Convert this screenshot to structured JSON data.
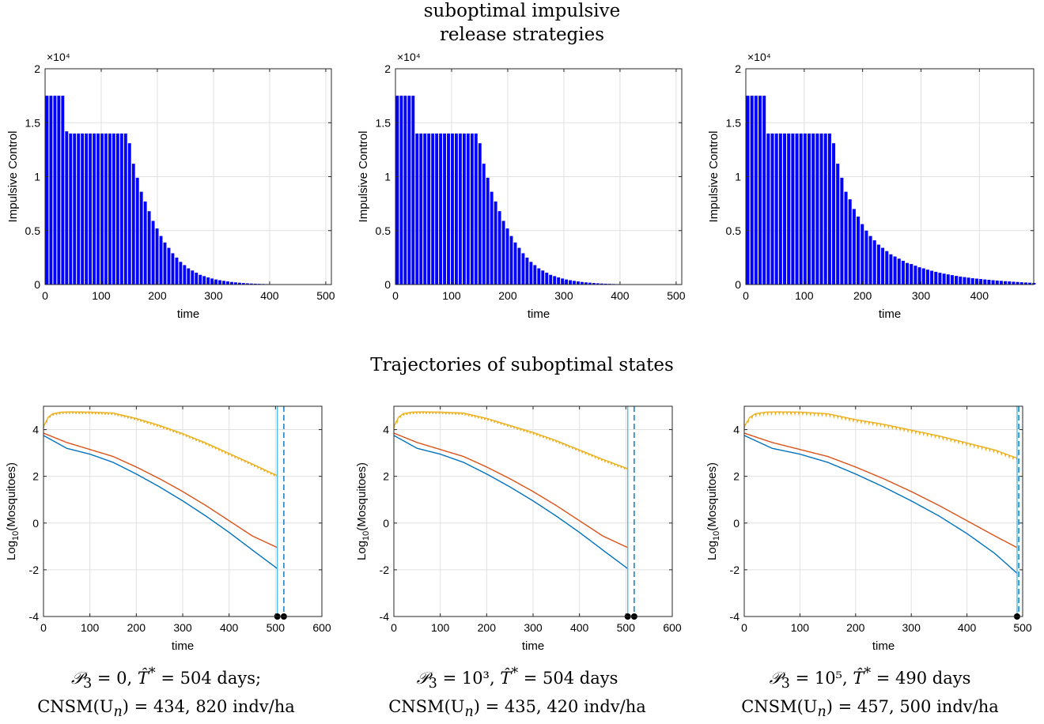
{
  "headers": {
    "top_line1": "suboptimal impulsive",
    "top_line2": "release strategies",
    "bottom": "Trajectories of suboptimal states"
  },
  "captions": [
    {
      "line1_prefix": "𝒫",
      "line1_sub": "3",
      "line1_mid": " = 0,  ",
      "line1_T": "T̂",
      "line1_Tsup": "*",
      "line1_rest": " = 504 days;",
      "line2": "CNSM(U",
      "line2_sub": "n",
      "line2_rest": ") = 434, 820 indv/ha"
    },
    {
      "line1_prefix": "𝒫",
      "line1_sub": "3",
      "line1_mid": " = 10³,  ",
      "line1_T": "T̂",
      "line1_Tsup": "*",
      "line1_rest": " = 504 days",
      "line2": "CNSM(U",
      "line2_sub": "n",
      "line2_rest": ") = 435, 420 indv/ha"
    },
    {
      "line1_prefix": "𝒫",
      "line1_sub": "3",
      "line1_mid": " = 10⁵,  ",
      "line1_T": "T̂",
      "line1_Tsup": "*",
      "line1_rest": " = 490 days",
      "line2": "CNSM(U",
      "line2_sub": "n",
      "line2_rest": ") = 457, 500 indv/ha"
    }
  ],
  "colors": {
    "bars": "#0000ff",
    "blue": "#0072bd",
    "red": "#d95319",
    "yellow": "#edb120",
    "vline": "#4dbeee",
    "grid": "#e0e0e0",
    "axis": "#262626"
  },
  "chart_data": [
    {
      "type": "bar",
      "panel": "top-left",
      "xlabel": "time",
      "ylabel": "Impulsive Control",
      "exponent_label": "×10⁴",
      "xlim": [
        0,
        510
      ],
      "ylim": [
        0,
        20000
      ],
      "xticks": [
        0,
        100,
        200,
        300,
        400,
        500
      ],
      "yticks": [
        0,
        5000,
        10000,
        15000,
        20000
      ],
      "yticklabels": [
        "0",
        "0.5",
        "1",
        "1.5",
        "2"
      ],
      "x": [
        0,
        7,
        14,
        21,
        28,
        35,
        42,
        49,
        56,
        63,
        70,
        77,
        84,
        91,
        98,
        105,
        112,
        119,
        126,
        133,
        140,
        147,
        154,
        161,
        168,
        175,
        182,
        189,
        196,
        203,
        210,
        217,
        224,
        231,
        238,
        245,
        252,
        259,
        266,
        273,
        280,
        287,
        294,
        301,
        308,
        315,
        322,
        329,
        336,
        343,
        350,
        357,
        364,
        371,
        378,
        385,
        392,
        399,
        406,
        413,
        420,
        427,
        434,
        441,
        448,
        455,
        462,
        469,
        476,
        483,
        490,
        497,
        504
      ],
      "values": [
        17500,
        17500,
        17500,
        17500,
        17500,
        14200,
        14000,
        14000,
        14000,
        14000,
        14000,
        14000,
        14000,
        14000,
        14000,
        14000,
        14000,
        14000,
        14000,
        14000,
        14000,
        13100,
        11200,
        9900,
        8600,
        7700,
        6800,
        5900,
        5200,
        4500,
        3900,
        3400,
        2900,
        2500,
        2100,
        1800,
        1500,
        1300,
        1100,
        900,
        780,
        660,
        560,
        470,
        400,
        340,
        290,
        240,
        200,
        170,
        140,
        115,
        95,
        78,
        64,
        52,
        42,
        34,
        27,
        22,
        17,
        13,
        10,
        8,
        6,
        5,
        4,
        3,
        2,
        2,
        1,
        1,
        1
      ],
      "grid": true
    },
    {
      "type": "bar",
      "panel": "top-middle",
      "xlabel": "time",
      "ylabel": "Impulsive Control",
      "exponent_label": "×10⁴",
      "xlim": [
        0,
        510
      ],
      "ylim": [
        0,
        20000
      ],
      "xticks": [
        0,
        100,
        200,
        300,
        400,
        500
      ],
      "yticks": [
        0,
        5000,
        10000,
        15000,
        20000
      ],
      "yticklabels": [
        "0",
        "0.5",
        "1",
        "1.5",
        "2"
      ],
      "x": [
        0,
        7,
        14,
        21,
        28,
        35,
        42,
        49,
        56,
        63,
        70,
        77,
        84,
        91,
        98,
        105,
        112,
        119,
        126,
        133,
        140,
        147,
        154,
        161,
        168,
        175,
        182,
        189,
        196,
        203,
        210,
        217,
        224,
        231,
        238,
        245,
        252,
        259,
        266,
        273,
        280,
        287,
        294,
        301,
        308,
        315,
        322,
        329,
        336,
        343,
        350,
        357,
        364,
        371,
        378,
        385,
        392,
        399,
        406,
        413,
        420,
        427,
        434,
        441,
        448,
        455,
        462,
        469,
        476,
        483,
        490,
        497,
        504
      ],
      "values": [
        17500,
        17500,
        17500,
        17500,
        17500,
        14000,
        14000,
        14000,
        14000,
        14000,
        14000,
        14000,
        14000,
        14000,
        14000,
        14000,
        14000,
        14000,
        14000,
        14000,
        14000,
        13100,
        11200,
        9900,
        8600,
        7700,
        6800,
        5900,
        5200,
        4500,
        3900,
        3400,
        2900,
        2500,
        2100,
        1800,
        1500,
        1300,
        1100,
        900,
        780,
        660,
        560,
        470,
        400,
        340,
        290,
        240,
        200,
        170,
        140,
        115,
        95,
        78,
        64,
        52,
        42,
        34,
        27,
        22,
        17,
        13,
        10,
        8,
        6,
        5,
        4,
        3,
        2,
        2,
        1,
        1,
        1
      ],
      "grid": true
    },
    {
      "type": "bar",
      "panel": "top-right",
      "xlabel": "time",
      "ylabel": "Impulsive Control",
      "exponent_label": "×10⁴",
      "xlim": [
        0,
        493
      ],
      "ylim": [
        0,
        20000
      ],
      "xticks": [
        0,
        100,
        200,
        300,
        400
      ],
      "yticks": [
        0,
        5000,
        10000,
        15000,
        20000
      ],
      "yticklabels": [
        "0",
        "0.5",
        "1",
        "1.5",
        "2"
      ],
      "x": [
        0,
        7,
        14,
        21,
        28,
        35,
        42,
        49,
        56,
        63,
        70,
        77,
        84,
        91,
        98,
        105,
        112,
        119,
        126,
        133,
        140,
        147,
        154,
        161,
        168,
        175,
        182,
        189,
        196,
        203,
        210,
        217,
        224,
        231,
        238,
        245,
        252,
        259,
        266,
        273,
        280,
        287,
        294,
        301,
        308,
        315,
        322,
        329,
        336,
        343,
        350,
        357,
        364,
        371,
        378,
        385,
        392,
        399,
        406,
        413,
        420,
        427,
        434,
        441,
        448,
        455,
        462,
        469,
        476,
        483,
        490
      ],
      "values": [
        17500,
        17500,
        17500,
        17500,
        17500,
        14000,
        14000,
        14000,
        14000,
        14000,
        14000,
        14000,
        14000,
        14000,
        14000,
        14000,
        14000,
        14000,
        14000,
        14000,
        14000,
        13100,
        11200,
        9900,
        8600,
        7900,
        7000,
        6300,
        5600,
        5000,
        4500,
        4100,
        3700,
        3400,
        3100,
        2800,
        2600,
        2400,
        2200,
        2000,
        1900,
        1750,
        1600,
        1500,
        1380,
        1280,
        1180,
        1090,
        1010,
        940,
        870,
        800,
        740,
        690,
        640,
        590,
        550,
        510,
        470,
        440,
        400,
        370,
        340,
        310,
        290,
        260,
        240,
        210,
        190,
        170,
        150
      ],
      "grid": true
    },
    {
      "type": "line",
      "panel": "bottom-left",
      "xlabel": "time",
      "ylabel": "Log10(Mosquitoes)",
      "xlim": [
        0,
        600
      ],
      "ylim": [
        -4,
        5
      ],
      "xticks": [
        0,
        100,
        200,
        300,
        400,
        500,
        600
      ],
      "yticks": [
        -4,
        -2,
        0,
        2,
        4
      ],
      "T_end": 504,
      "vlines": [
        504,
        518
      ],
      "markers": [
        504,
        518
      ],
      "series": [
        {
          "color_key": "blue",
          "x": [
            0,
            50,
            100,
            150,
            200,
            250,
            300,
            350,
            400,
            450,
            504
          ],
          "values": [
            3.75,
            3.2,
            2.95,
            2.6,
            2.1,
            1.55,
            0.95,
            0.3,
            -0.4,
            -1.15,
            -1.95
          ]
        },
        {
          "color_key": "red",
          "x": [
            0,
            50,
            100,
            150,
            200,
            250,
            300,
            350,
            400,
            450,
            504
          ],
          "values": [
            3.85,
            3.45,
            3.15,
            2.85,
            2.4,
            1.9,
            1.35,
            0.75,
            0.1,
            -0.55,
            -1.05
          ]
        },
        {
          "color_key": "yellow",
          "x": [
            0,
            10,
            20,
            40,
            60,
            100,
            150,
            200,
            250,
            300,
            350,
            400,
            450,
            504
          ],
          "values": [
            4.1,
            4.5,
            4.65,
            4.72,
            4.73,
            4.72,
            4.68,
            4.45,
            4.15,
            3.8,
            3.4,
            2.95,
            2.5,
            2.0
          ],
          "sawtooth": true
        }
      ]
    },
    {
      "type": "line",
      "panel": "bottom-middle",
      "xlabel": "time",
      "ylabel": "Log10(Mosquitoes)",
      "xlim": [
        0,
        600
      ],
      "ylim": [
        -4,
        5
      ],
      "xticks": [
        0,
        100,
        200,
        300,
        400,
        500,
        600
      ],
      "yticks": [
        -4,
        -2,
        0,
        2,
        4
      ],
      "T_end": 504,
      "vlines": [
        504,
        518
      ],
      "markers": [
        504,
        518
      ],
      "series": [
        {
          "color_key": "blue",
          "x": [
            0,
            50,
            100,
            150,
            200,
            250,
            300,
            350,
            400,
            450,
            504
          ],
          "values": [
            3.75,
            3.2,
            2.95,
            2.6,
            2.1,
            1.55,
            0.95,
            0.3,
            -0.4,
            -1.15,
            -1.95
          ]
        },
        {
          "color_key": "red",
          "x": [
            0,
            50,
            100,
            150,
            200,
            250,
            300,
            350,
            400,
            450,
            504
          ],
          "values": [
            3.85,
            3.45,
            3.15,
            2.85,
            2.4,
            1.9,
            1.35,
            0.75,
            0.1,
            -0.55,
            -1.05
          ]
        },
        {
          "color_key": "yellow",
          "x": [
            0,
            10,
            20,
            40,
            60,
            100,
            150,
            200,
            250,
            300,
            350,
            400,
            450,
            504
          ],
          "values": [
            4.1,
            4.5,
            4.65,
            4.72,
            4.73,
            4.72,
            4.68,
            4.45,
            4.15,
            3.85,
            3.5,
            3.1,
            2.7,
            2.3
          ],
          "sawtooth": true
        }
      ]
    },
    {
      "type": "line",
      "panel": "bottom-right",
      "xlabel": "time",
      "ylabel": "Log10(Mosquitoes)",
      "xlim": [
        0,
        500
      ],
      "ylim": [
        -4,
        5
      ],
      "xticks": [
        0,
        100,
        200,
        300,
        400,
        500
      ],
      "yticks": [
        -4,
        -2,
        0,
        2,
        4
      ],
      "T_end": 490,
      "vlines": [
        490,
        493
      ],
      "markers": [
        490
      ],
      "series": [
        {
          "color_key": "blue",
          "x": [
            0,
            50,
            100,
            150,
            200,
            250,
            300,
            350,
            400,
            450,
            490
          ],
          "values": [
            3.75,
            3.2,
            2.95,
            2.6,
            2.1,
            1.55,
            0.95,
            0.3,
            -0.45,
            -1.3,
            -2.15
          ]
        },
        {
          "color_key": "red",
          "x": [
            0,
            50,
            100,
            150,
            200,
            250,
            300,
            350,
            400,
            450,
            490
          ],
          "values": [
            3.85,
            3.45,
            3.15,
            2.85,
            2.4,
            1.9,
            1.35,
            0.75,
            0.1,
            -0.55,
            -1.05
          ]
        },
        {
          "color_key": "yellow",
          "x": [
            0,
            10,
            20,
            40,
            60,
            100,
            150,
            200,
            250,
            300,
            350,
            400,
            450,
            490
          ],
          "values": [
            4.1,
            4.5,
            4.65,
            4.72,
            4.73,
            4.72,
            4.65,
            4.4,
            4.2,
            3.95,
            3.7,
            3.4,
            3.1,
            2.75
          ],
          "sawtooth": true
        }
      ]
    }
  ]
}
